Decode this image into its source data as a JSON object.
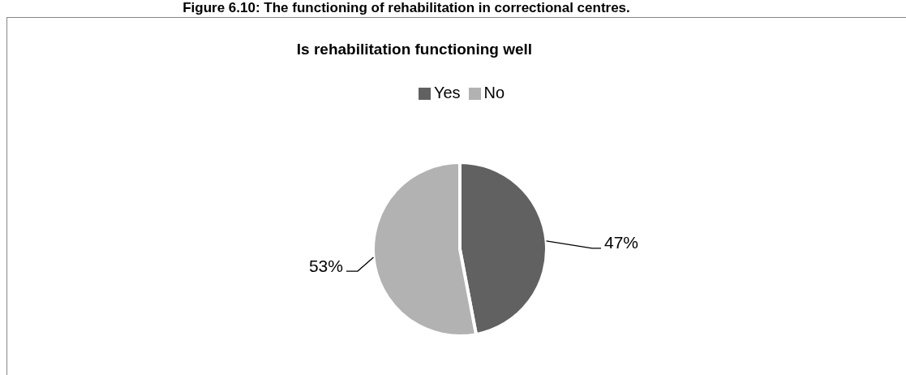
{
  "chart_data": {
    "type": "pie",
    "title": "Figure 6.10: The functioning of rehabilitation in correctional centres.",
    "subtitle": "Is rehabilitation functioning well",
    "categories": [
      "Yes",
      "No"
    ],
    "values": [
      47,
      53
    ],
    "colors": [
      "#616161",
      "#b2b2b2"
    ],
    "value_labels": [
      "47%",
      "53%"
    ],
    "legend": "top"
  }
}
